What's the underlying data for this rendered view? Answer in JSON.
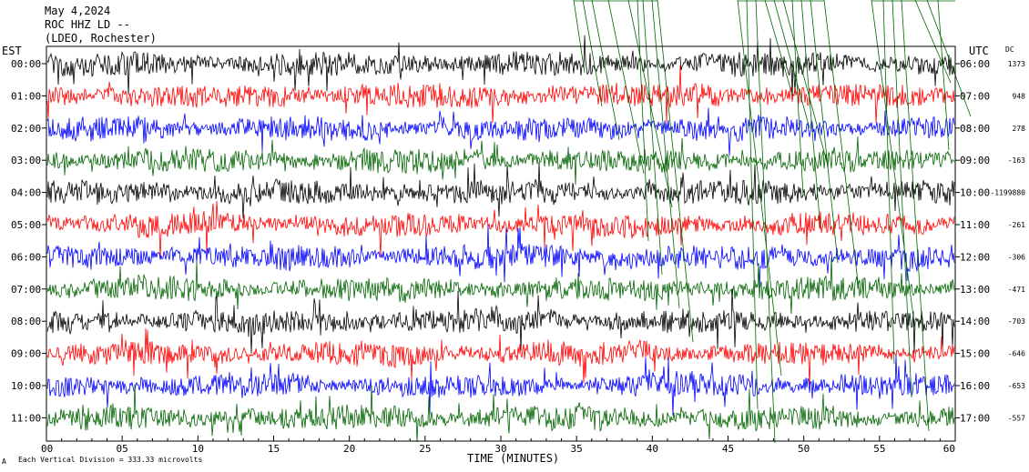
{
  "header": {
    "line1": "May 4,2024",
    "line2": "ROC HHZ LD --",
    "line3": "(LDEO, Rochester)"
  },
  "left_zone_label": "EST",
  "right_zone_label": "UTC",
  "dc_label": "DC",
  "footer": {
    "scale_text": "Each Vertical Division =  333.33 microvolts",
    "scale_mark": "A"
  },
  "chart_data": {
    "type": "line",
    "xlabel": "TIME (MINUTES)",
    "xlim": [
      0,
      60
    ],
    "x_ticks": [
      "00",
      "05",
      "10",
      "15",
      "20",
      "25",
      "30",
      "35",
      "40",
      "45",
      "50",
      "55",
      "60"
    ],
    "series_colors": [
      "#000000",
      "#ff0000",
      "#0000ff",
      "#006400"
    ],
    "rows": [
      {
        "est": "00:00",
        "utc": "06:00",
        "dc": "1373"
      },
      {
        "est": "01:00",
        "utc": "07:00",
        "dc": "948"
      },
      {
        "est": "02:00",
        "utc": "08:00",
        "dc": "278"
      },
      {
        "est": "03:00",
        "utc": "09:00",
        "dc": "-163"
      },
      {
        "est": "04:00",
        "utc": "10:00",
        "dc": "-1199880"
      },
      {
        "est": "05:00",
        "utc": "11:00",
        "dc": "-261"
      },
      {
        "est": "06:00",
        "utc": "12:00",
        "dc": "-306"
      },
      {
        "est": "07:00",
        "utc": "13:00",
        "dc": "-471"
      },
      {
        "est": "08:00",
        "utc": "14:00",
        "dc": "-703"
      },
      {
        "est": "09:00",
        "utc": "15:00",
        "dc": "-646"
      },
      {
        "est": "10:00",
        "utc": "16:00",
        "dc": "-653"
      },
      {
        "est": "11:00",
        "utc": "17:00",
        "dc": "-557"
      }
    ]
  }
}
